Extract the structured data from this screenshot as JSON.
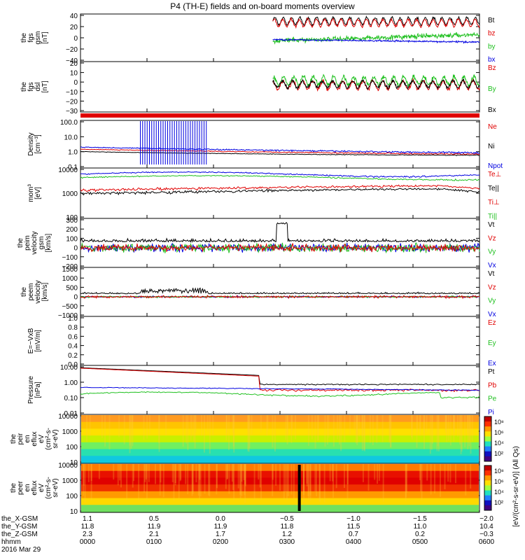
{
  "title": "P4 (TH-E) fields and on-board moments overview",
  "colors": {
    "black": "#000000",
    "red": "#e00000",
    "green": "#20c020",
    "blue": "#0000e0"
  },
  "chart_data": [
    {
      "type": "line",
      "ylabel": [
        "the",
        "fgs",
        "gsm",
        "[nT]"
      ],
      "yticks": [
        "40",
        "20",
        "0",
        "−20",
        "−40"
      ],
      "ylim": [
        -40,
        40
      ],
      "series": [
        {
          "name": "Bt",
          "color": "black"
        },
        {
          "name": "bz",
          "color": "red"
        },
        {
          "name": "by",
          "color": "green"
        },
        {
          "name": "bx",
          "color": "blue"
        }
      ]
    },
    {
      "type": "line",
      "ylabel": [
        "the",
        "fgs",
        "dsl",
        "[nT]"
      ],
      "yticks": [
        "20",
        "10",
        "0",
        "−10",
        "−20",
        "−30"
      ],
      "ylim": [
        -35,
        25
      ],
      "series": [
        {
          "name": "Bz",
          "color": "red"
        },
        {
          "name": "By",
          "color": "green"
        },
        {
          "name": "Bx",
          "color": "black"
        }
      ]
    },
    {
      "type": "line",
      "ylabel": [
        "Density",
        "[cm⁻³]"
      ],
      "yticks": [
        "100.0",
        "10.0",
        "1.0",
        "0.1"
      ],
      "scale": "log",
      "series": [
        {
          "name": "Ne",
          "color": "red"
        },
        {
          "name": "Ni",
          "color": "black"
        },
        {
          "name": "Npot",
          "color": "blue"
        }
      ]
    },
    {
      "type": "line",
      "ylabel": [
        "mom³",
        "[eV]"
      ],
      "yticks": [
        "10000",
        "1000",
        "100"
      ],
      "scale": "log",
      "series": [
        {
          "name": "Te⊥",
          "color": "red"
        },
        {
          "name": "Te||",
          "color": "black"
        },
        {
          "name": "Ti⊥",
          "color": "red"
        },
        {
          "name": "Ti||",
          "color": "green"
        }
      ]
    },
    {
      "type": "line",
      "ylabel": [
        "the",
        "peim",
        "velocity",
        "gsm",
        "[km/s]"
      ],
      "yticks": [
        "300",
        "200",
        "100",
        "0",
        "−100",
        "−200"
      ],
      "ylim": [
        -200,
        300
      ],
      "series": [
        {
          "name": "Vt",
          "color": "black"
        },
        {
          "name": "Vz",
          "color": "red"
        },
        {
          "name": "Vy",
          "color": "green"
        },
        {
          "name": "Vx",
          "color": "blue"
        }
      ]
    },
    {
      "type": "line",
      "ylabel": [
        "the",
        "peem",
        "velocity",
        "[km/s]"
      ],
      "yticks": [
        "1500",
        "1000",
        "500",
        "0",
        "−500",
        "−1000"
      ],
      "ylim": [
        -1000,
        1500
      ],
      "series": [
        {
          "name": "Vt",
          "color": "black"
        },
        {
          "name": "Vz",
          "color": "red"
        },
        {
          "name": "Vy",
          "color": "green"
        },
        {
          "name": "Vx",
          "color": "blue"
        }
      ]
    },
    {
      "type": "line",
      "ylabel": [
        "E=−VxB",
        "[mV/m]"
      ],
      "yticks": [
        "1.0",
        "0.8",
        "0.6",
        "0.4",
        "0.2",
        "0.0"
      ],
      "ylim": [
        0,
        1
      ],
      "series": [
        {
          "name": "Ez",
          "color": "red"
        },
        {
          "name": "Ey",
          "color": "green"
        },
        {
          "name": "Ex",
          "color": "blue"
        }
      ]
    },
    {
      "type": "line",
      "ylabel": [
        "Pressure",
        "[nPa]"
      ],
      "yticks": [
        "10.00",
        "1.00",
        "0.10",
        "0.01"
      ],
      "scale": "log",
      "series": [
        {
          "name": "Pt",
          "color": "black"
        },
        {
          "name": "Pb",
          "color": "red"
        },
        {
          "name": "Pe",
          "color": "green"
        },
        {
          "name": "Pi",
          "color": "blue"
        }
      ]
    },
    {
      "type": "heatmap",
      "ylabel": [
        "the",
        "peir",
        "en",
        "eflux",
        "eV",
        "(cm²-s-",
        "sr-eV)"
      ],
      "yticks": [
        "10000",
        "1000",
        "100",
        "10"
      ],
      "scale": "log"
    },
    {
      "type": "heatmap",
      "ylabel": [
        "the",
        "peer",
        "en",
        "eflux",
        "eV",
        "(cm²-s-",
        "sr-eV)"
      ],
      "yticks": [
        "10000",
        "1000",
        "100",
        "10"
      ],
      "scale": "log"
    }
  ],
  "colorbar": {
    "ticks": [
      "10⁸",
      "10⁶",
      "10⁴",
      "10²"
    ],
    "label": "[eV/(cm²-s-sr-eV)] (All Qs)"
  },
  "xaxis": {
    "rows": [
      {
        "label": "the_X-GSM",
        "values": [
          "1.1",
          "0.5",
          "0.0",
          "−0.5",
          "−1.0",
          "−1.5",
          "−2.0"
        ]
      },
      {
        "label": "the_Y-GSM",
        "values": [
          "11.8",
          "11.9",
          "11.9",
          "11.8",
          "11.5",
          "11.0",
          "10.4"
        ]
      },
      {
        "label": "the_Z-GSM",
        "values": [
          "2.3",
          "2.1",
          "1.7",
          "1.2",
          "0.7",
          "0.2",
          "−0.3"
        ]
      },
      {
        "label": "hhmm",
        "values": [
          "0000",
          "0100",
          "0200",
          "0300",
          "0400",
          "0500",
          "0600"
        ]
      }
    ],
    "date": "2016 Mar 29"
  }
}
